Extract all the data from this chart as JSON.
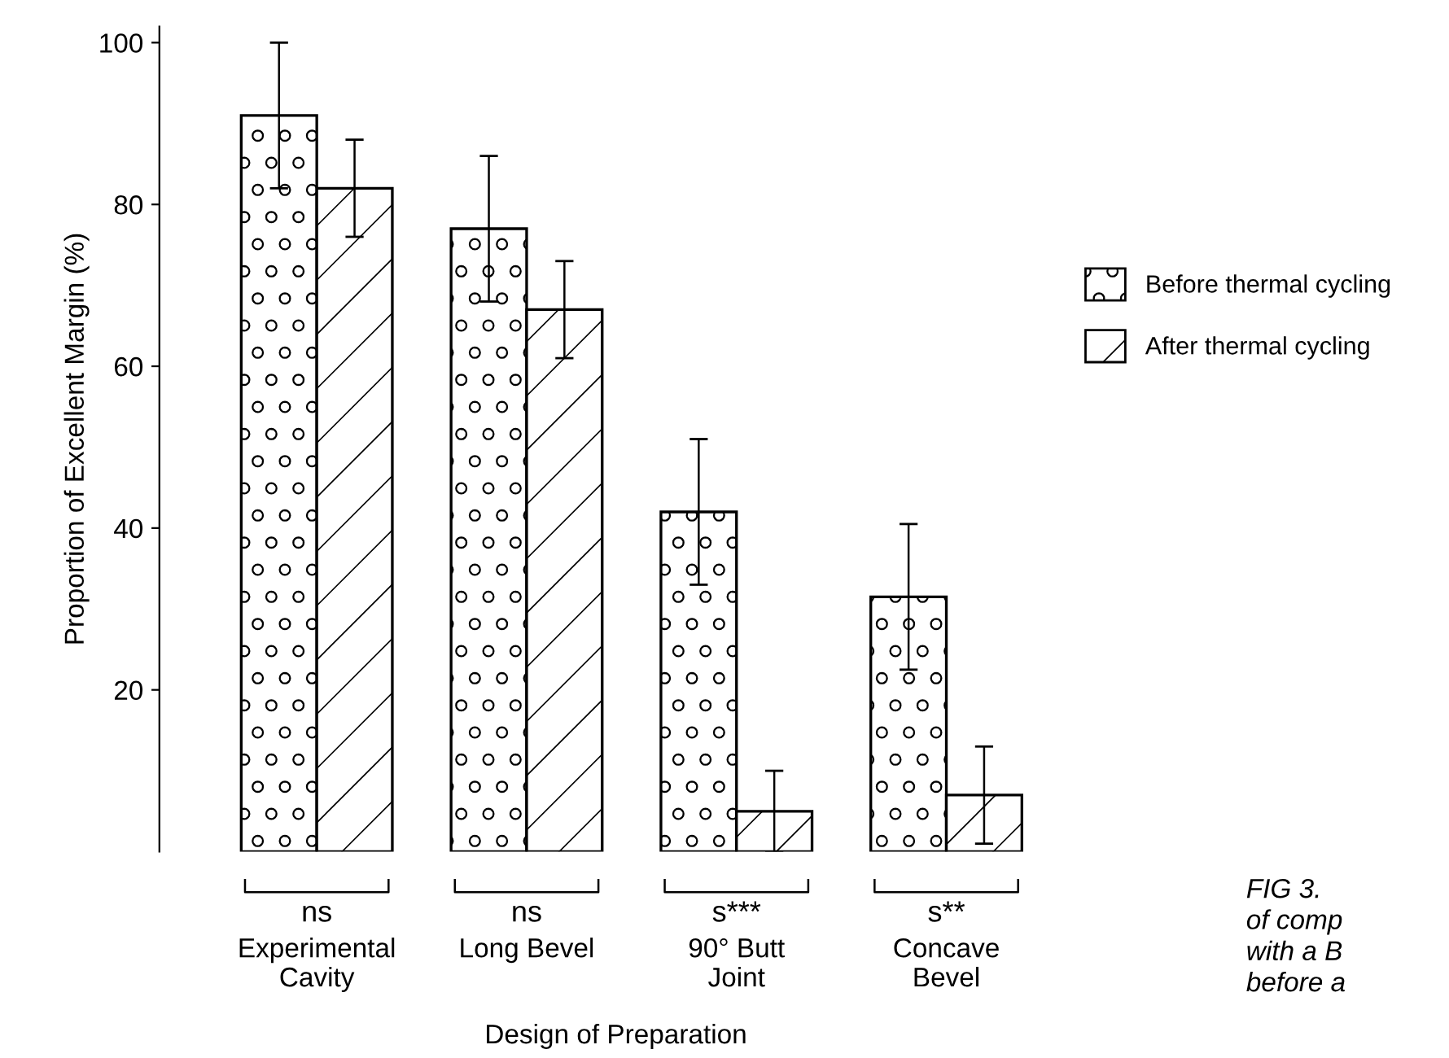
{
  "chart_data": {
    "type": "bar",
    "xlabel": "Design of Preparation",
    "ylabel": "Proportion of Excellent Margin (%)",
    "categories": [
      "Experimental\nCavity",
      "Long Bevel",
      "90° Butt\nJoint",
      "Concave\nBevel"
    ],
    "series": [
      {
        "name": "Before thermal cycling",
        "color": "#000000",
        "values": [
          91,
          77,
          42,
          31.5
        ],
        "errors": [
          9,
          9,
          9,
          9
        ]
      },
      {
        "name": "After thermal cycling",
        "color": "#000000",
        "values": [
          82,
          67,
          5,
          7
        ],
        "errors": [
          6,
          6,
          5,
          6
        ]
      }
    ],
    "ylim": [
      0,
      102
    ],
    "yticks": [
      20,
      40,
      60,
      80,
      100
    ],
    "grid": false,
    "legend": "right",
    "annotations": [
      "ns",
      "ns",
      "s***",
      "s**",
      "FIG 3.\nof comp\nwith a B\nbefore a"
    ]
  }
}
